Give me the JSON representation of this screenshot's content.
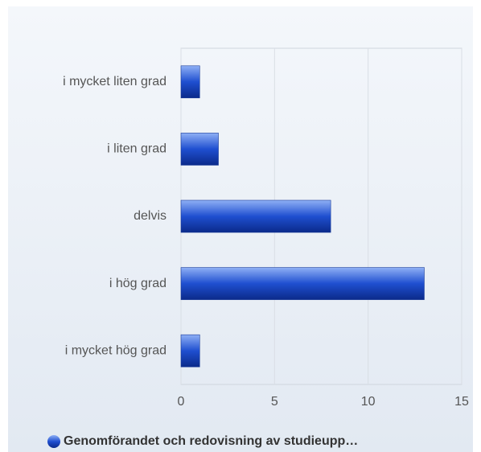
{
  "chart_data": {
    "type": "bar",
    "orientation": "horizontal",
    "categories": [
      "i mycket liten grad",
      "i liten grad",
      "delvis",
      "i hög grad",
      "i mycket hög grad"
    ],
    "series": [
      {
        "name": "Genomförandet och redovisning av studieupp…",
        "color": "#1f4fd0",
        "values": [
          1,
          2,
          8,
          13,
          1
        ]
      }
    ],
    "xlim": [
      0,
      15
    ],
    "xticks": [
      0,
      5,
      10,
      15
    ],
    "grid": true,
    "legend": "bottom"
  }
}
